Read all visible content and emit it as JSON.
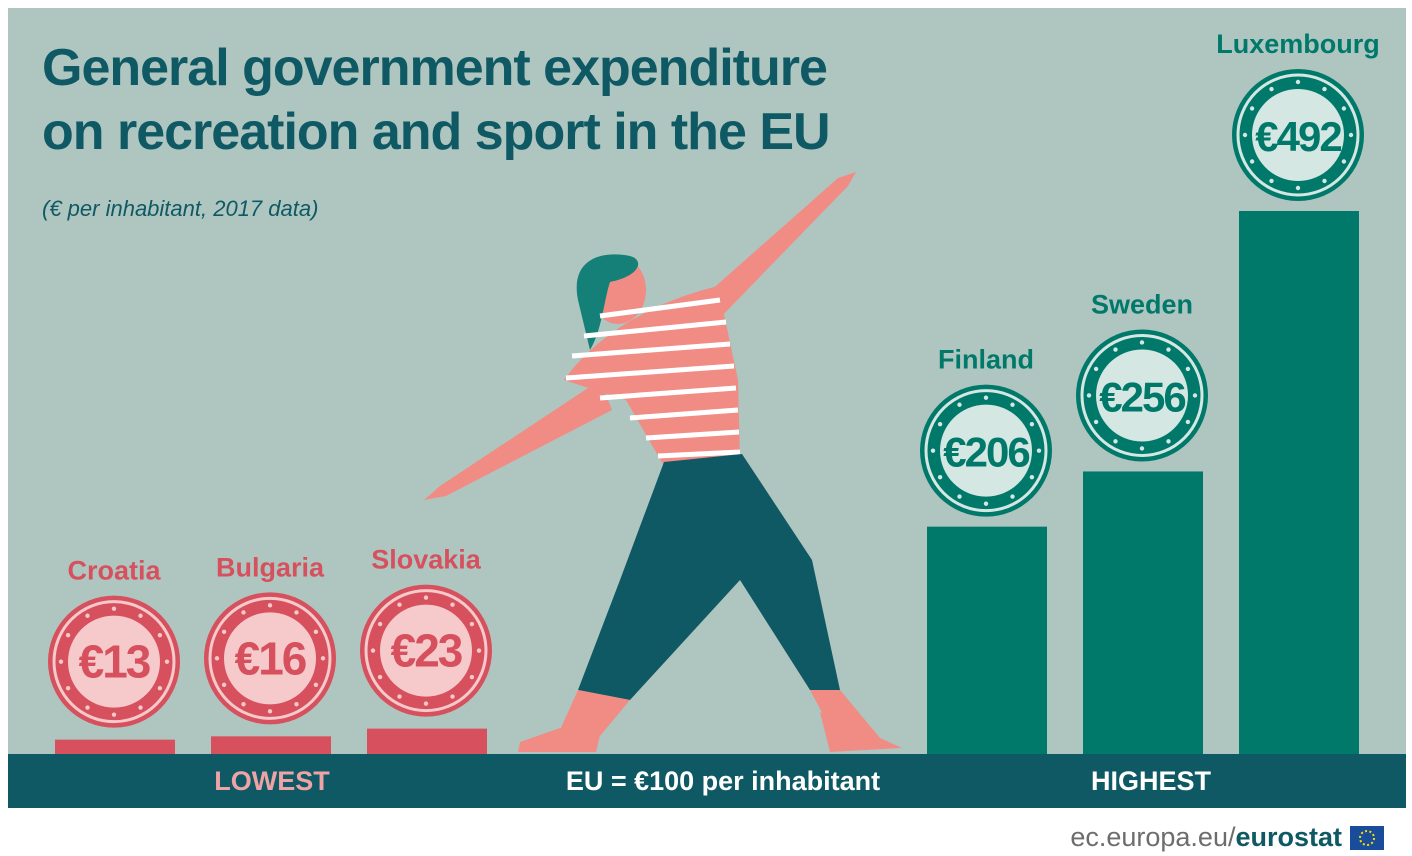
{
  "chart_data": {
    "type": "bar",
    "title": "General government expenditure on recreation and sport in the EU",
    "subtitle": "(€ per inhabitant, 2017 data)",
    "categories": [
      "Croatia",
      "Bulgaria",
      "Slovakia",
      "Finland",
      "Sweden",
      "Luxembourg"
    ],
    "values": [
      13,
      16,
      23,
      206,
      256,
      492
    ],
    "value_labels": [
      "€13",
      "€16",
      "€23",
      "€206",
      "€256",
      "€492"
    ],
    "groups": [
      "LOWEST",
      "LOWEST",
      "LOWEST",
      "HIGHEST",
      "HIGHEST",
      "HIGHEST"
    ],
    "reference_label": "EU = €100 per inhabitant",
    "colors": {
      "lowest": "#d6505d",
      "highest": "#00796b",
      "title": "#0f5964",
      "background": "#afc6c0",
      "band": "#0f5964"
    }
  },
  "band": {
    "lowest": "LOWEST",
    "eu": "EU = €100 per inhabitant",
    "highest": "HIGHEST"
  },
  "source": {
    "domain": "ec.europa.eu/",
    "brand": "eurostat"
  },
  "icons": [
    "coin-icon",
    "woman-exercising-illustration",
    "eu-flag-icon"
  ]
}
